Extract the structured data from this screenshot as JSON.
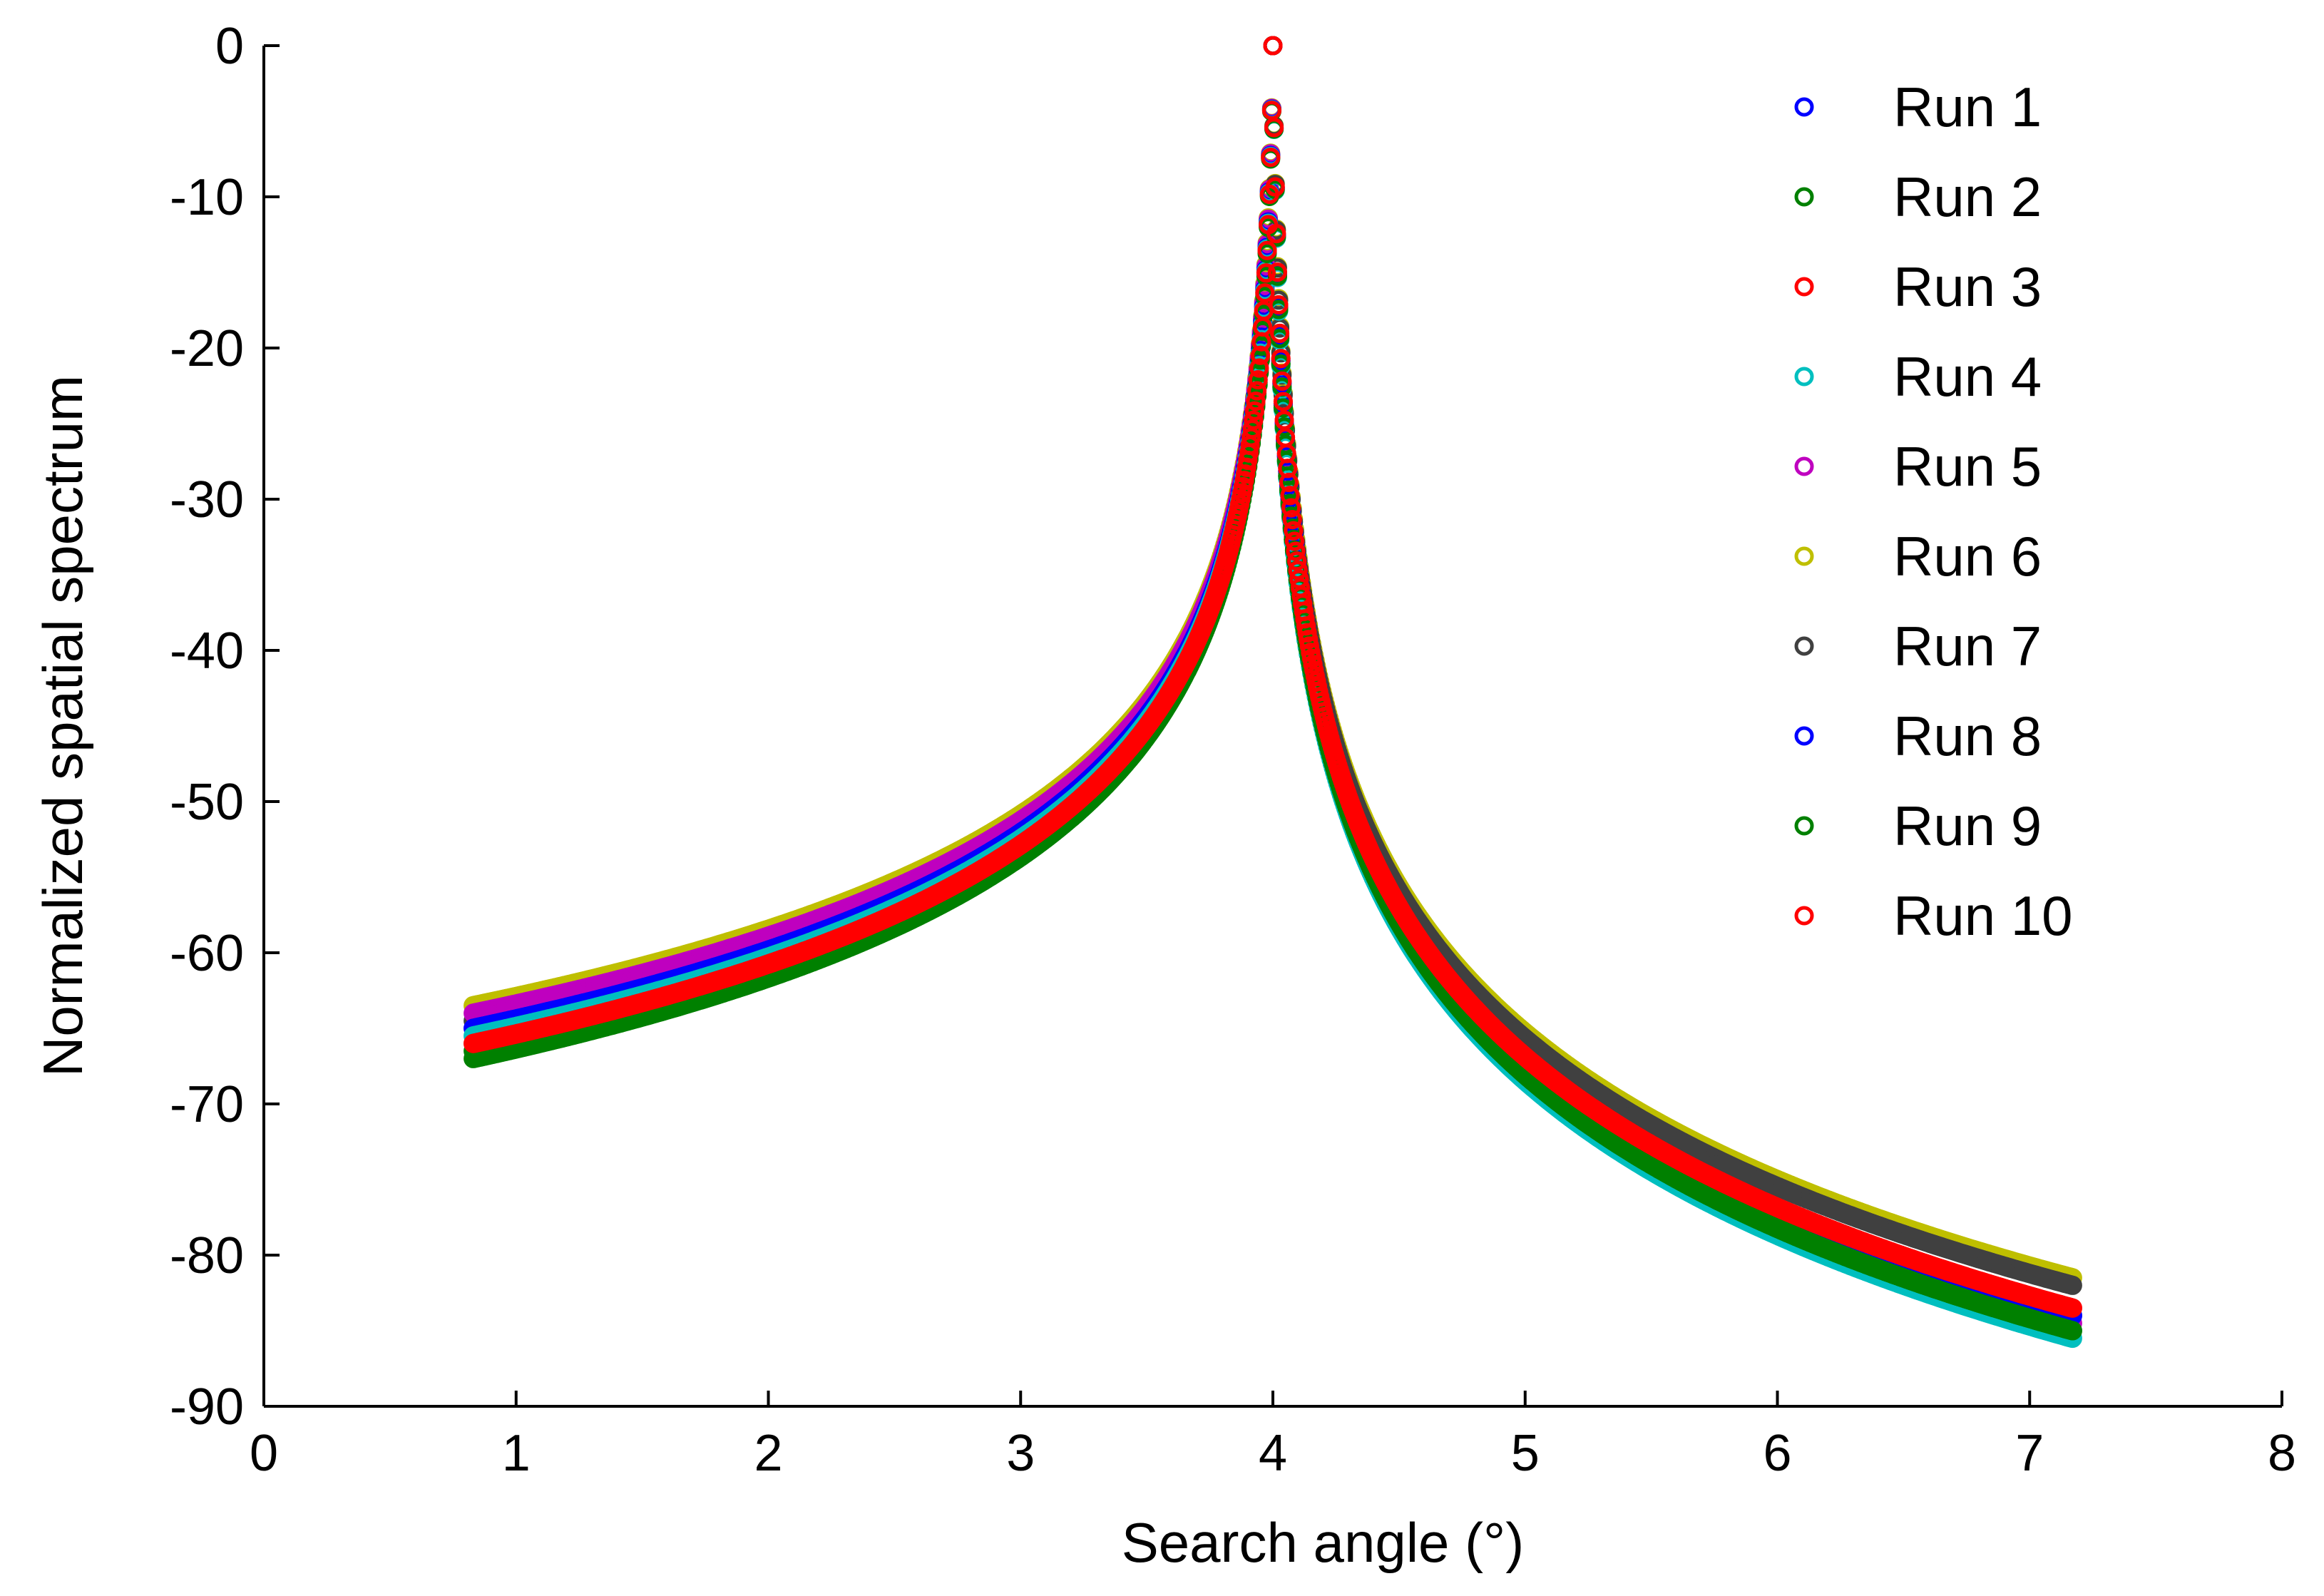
{
  "chart_data": {
    "type": "scatter",
    "title": "",
    "xlabel": "Search angle  (°)",
    "ylabel": "Normalized spatial spectrum",
    "xlim": [
      0,
      8
    ],
    "ylim": [
      -90,
      0
    ],
    "xticks": [
      0,
      1,
      2,
      3,
      4,
      5,
      6,
      7,
      8
    ],
    "yticks": [
      0,
      -10,
      -20,
      -30,
      -40,
      -50,
      -60,
      -70,
      -80,
      -90
    ],
    "xtick_labels": [
      "0",
      "1",
      "2",
      "3",
      "4",
      "5",
      "6",
      "7",
      "8"
    ],
    "ytick_labels": [
      "0",
      "-10",
      "-20",
      "-30",
      "-40",
      "-50",
      "-60",
      "-70",
      "-80",
      "-90"
    ],
    "grid": false,
    "legend": "top-right",
    "x_range": [
      0.83,
      7.17
    ],
    "peak_x": 4.0,
    "series": [
      {
        "name": "Run 1",
        "color": "#0000ff",
        "y_at_x_min": -65.0,
        "y_at_x_max": -84.0
      },
      {
        "name": "Run 2",
        "color": "#008000",
        "y_at_x_min": -66.5,
        "y_at_x_max": -85.0
      },
      {
        "name": "Run 3",
        "color": "#ff0000",
        "y_at_x_min": -66.0,
        "y_at_x_max": -83.5
      },
      {
        "name": "Run 4",
        "color": "#00bfbf",
        "y_at_x_min": -65.5,
        "y_at_x_max": -85.5
      },
      {
        "name": "Run 5",
        "color": "#bf00bf",
        "y_at_x_min": -64.0,
        "y_at_x_max": -84.5
      },
      {
        "name": "Run 6",
        "color": "#bfbf00",
        "y_at_x_min": -63.5,
        "y_at_x_max": -81.5
      },
      {
        "name": "Run 7",
        "color": "#404040",
        "y_at_x_min": -64.5,
        "y_at_x_max": -82.0
      },
      {
        "name": "Run 8",
        "color": "#0000ff",
        "y_at_x_min": -65.0,
        "y_at_x_max": -84.0
      },
      {
        "name": "Run 9",
        "color": "#008000",
        "y_at_x_min": -67.0,
        "y_at_x_max": -85.0
      },
      {
        "name": "Run 10",
        "color": "#ff0000",
        "y_at_x_min": -66.0,
        "y_at_x_max": -83.5
      }
    ]
  }
}
